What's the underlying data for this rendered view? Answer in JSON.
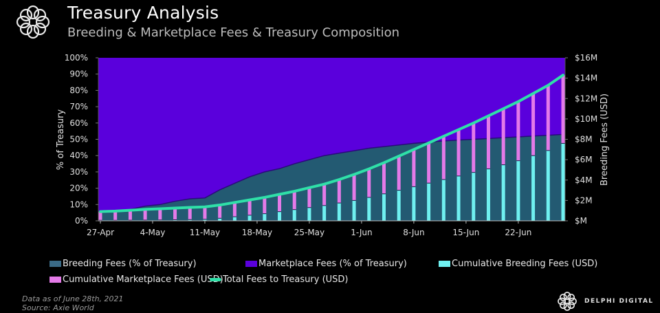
{
  "header": {
    "title": "Treasury Analysis",
    "subtitle": "Breeding & Marketplace Fees & Treasury Composition"
  },
  "footer": {
    "data_note": "Data as of June 28th, 2021",
    "source": "Source: Axie World",
    "brand": "DELPHI DIGITAL"
  },
  "colors": {
    "background": "#000000",
    "breeding_pct": "#235a72",
    "marketplace_pct": "#5a00dc",
    "cumulative_breeding": "#6ff0f0",
    "cumulative_marketplace": "#e47ae8",
    "total_fees": "#2fe0a8"
  },
  "chart_data": {
    "type": "area+bar+line",
    "title": "Treasury Analysis",
    "subtitle": "Breeding & Marketplace Fees & Treasury Composition",
    "xlabel": "",
    "ylabel_left": "% of Treasury",
    "ylabel_right": "Breeding Fees (USD)",
    "ylim_left": [
      0,
      100
    ],
    "ylim_right": [
      0,
      16
    ],
    "left_ticks": [
      "0%",
      "10%",
      "20%",
      "30%",
      "40%",
      "50%",
      "60%",
      "70%",
      "80%",
      "90%",
      "100%"
    ],
    "right_ticks": [
      "$M",
      "$2M",
      "$4M",
      "$6M",
      "$8M",
      "$10M",
      "$12M",
      "$14M",
      "$16M"
    ],
    "x_tick_labels": [
      "27-Apr",
      "4-May",
      "11-May",
      "18-May",
      "25-May",
      "1-Jun",
      "8-Jun",
      "15-Jun",
      "22-Jun"
    ],
    "x_tick_days": [
      0,
      7,
      14,
      21,
      28,
      35,
      42,
      49,
      56
    ],
    "x_range_days": [
      0,
      62
    ],
    "legend": [
      {
        "name": "Breeding Fees (% of Treasury)",
        "kind": "area",
        "color": "#235a72"
      },
      {
        "name": "Marketplace Fees (% of Treasury)",
        "kind": "area",
        "color": "#5a00dc"
      },
      {
        "name": "Cumulative Breeding Fees (USD)",
        "kind": "bar",
        "color": "#6ff0f0"
      },
      {
        "name": "Cumulative Marketplace Fees (USD)",
        "kind": "bar",
        "color": "#e47ae8"
      },
      {
        "name": "Total Fees to Treasury (USD)",
        "kind": "line",
        "color": "#2fe0a8"
      }
    ],
    "legend_position": "bottom",
    "x_days": [
      0,
      2,
      4,
      6,
      8,
      10,
      12,
      14,
      16,
      18,
      20,
      22,
      24,
      26,
      28,
      30,
      32,
      34,
      36,
      38,
      40,
      42,
      44,
      46,
      48,
      50,
      52,
      54,
      56,
      58,
      60,
      62
    ],
    "series": [
      {
        "name": "Breeding Fees (% of Treasury)",
        "axis": "left",
        "values": [
          5,
          5.5,
          7,
          9,
          10,
          12,
          13.5,
          14,
          19,
          23,
          27,
          30,
          32,
          35,
          37.5,
          40,
          41.5,
          43,
          44.5,
          45.5,
          46.5,
          47.5,
          48.3,
          49,
          49.5,
          50,
          50.5,
          51,
          51.5,
          52,
          52.5,
          53
        ]
      },
      {
        "name": "Marketplace Fees (% of Treasury)",
        "axis": "left",
        "values": [
          95,
          94.5,
          93,
          91,
          90,
          88,
          86.5,
          86,
          81,
          77,
          73,
          70,
          68,
          65,
          62.5,
          60,
          58.5,
          57,
          55.5,
          54.5,
          53.5,
          52.5,
          51.7,
          51,
          50.5,
          50,
          49.5,
          49,
          48.5,
          48,
          47.5,
          47
        ]
      },
      {
        "name": "Cumulative Breeding Fees (USD)",
        "axis": "right",
        "unit": "$M",
        "values": [
          0.05,
          0.05,
          0.06,
          0.07,
          0.08,
          0.1,
          0.12,
          0.15,
          0.25,
          0.4,
          0.55,
          0.7,
          0.9,
          1.1,
          1.3,
          1.5,
          1.75,
          2.0,
          2.3,
          2.65,
          3.0,
          3.35,
          3.7,
          4.05,
          4.4,
          4.75,
          5.1,
          5.5,
          5.9,
          6.4,
          6.9,
          7.6
        ]
      },
      {
        "name": "Cumulative Marketplace Fees (USD)",
        "axis": "right",
        "unit": "$M",
        "values": [
          0.85,
          0.9,
          0.98,
          1.05,
          1.1,
          1.15,
          1.2,
          1.22,
          1.3,
          1.4,
          1.5,
          1.6,
          1.7,
          1.8,
          1.95,
          2.1,
          2.3,
          2.55,
          2.8,
          3.05,
          3.35,
          3.65,
          3.95,
          4.25,
          4.55,
          4.85,
          5.2,
          5.5,
          5.8,
          6.1,
          6.4,
          6.7
        ]
      },
      {
        "name": "Total Fees to Treasury (USD)",
        "axis": "right",
        "unit": "$M",
        "values": [
          0.9,
          0.95,
          1.04,
          1.12,
          1.18,
          1.25,
          1.32,
          1.37,
          1.55,
          1.8,
          2.05,
          2.3,
          2.6,
          2.9,
          3.25,
          3.6,
          4.05,
          4.55,
          5.1,
          5.7,
          6.35,
          7.0,
          7.65,
          8.3,
          8.95,
          9.6,
          10.3,
          11.0,
          11.7,
          12.5,
          13.3,
          14.3
        ]
      }
    ]
  }
}
